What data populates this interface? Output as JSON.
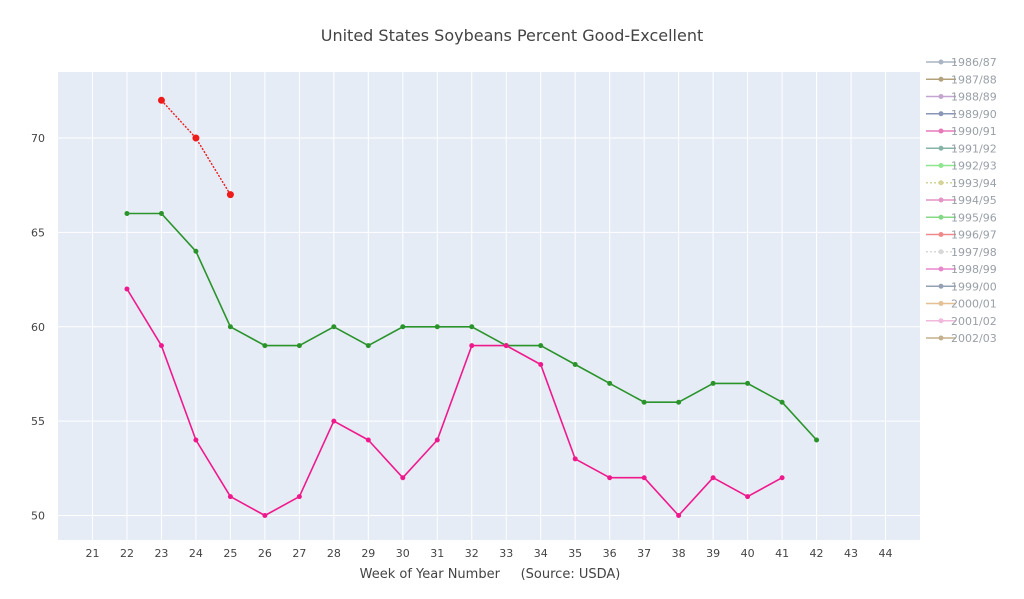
{
  "chart_data": {
    "type": "line",
    "title": "United States Soybeans Percent Good-Excellent",
    "xlabel": "Week of Year Number     (Source: USDA)",
    "ylabel": "",
    "xlim": [
      20,
      45
    ],
    "ylim": [
      48.7,
      73.5
    ],
    "x_ticks": [
      "21",
      "22",
      "23",
      "24",
      "25",
      "26",
      "27",
      "28",
      "29",
      "30",
      "31",
      "32",
      "33",
      "34",
      "35",
      "36",
      "37",
      "38",
      "39",
      "40",
      "41",
      "42",
      "43",
      "44"
    ],
    "y_ticks": [
      "50",
      "55",
      "60",
      "65",
      "70"
    ],
    "grid": true,
    "legend_position": "right",
    "legend": [
      {
        "label": "1986/87",
        "color": "#a9b4c4",
        "dash": false
      },
      {
        "label": "1987/88",
        "color": "#b3a17c",
        "dash": false
      },
      {
        "label": "1988/89",
        "color": "#c4a5d0",
        "dash": false
      },
      {
        "label": "1989/90",
        "color": "#8a96b8",
        "dash": false
      },
      {
        "label": "1990/91",
        "color": "#e879b8",
        "dash": false
      },
      {
        "label": "1991/92",
        "color": "#88b4a8",
        "dash": false
      },
      {
        "label": "1992/93",
        "color": "#8ee68e",
        "dash": false
      },
      {
        "label": "1993/94",
        "color": "#d4d49a",
        "dash": true
      },
      {
        "label": "1994/95",
        "color": "#e494c4",
        "dash": false
      },
      {
        "label": "1995/96",
        "color": "#86d886",
        "dash": false
      },
      {
        "label": "1996/97",
        "color": "#f08a8a",
        "dash": false
      },
      {
        "label": "1997/98",
        "color": "#d8d8d8",
        "dash": true
      },
      {
        "label": "1998/99",
        "color": "#e888cc",
        "dash": false
      },
      {
        "label": "1999/00",
        "color": "#94a0b4",
        "dash": false
      },
      {
        "label": "2000/01",
        "color": "#e4c094",
        "dash": false
      },
      {
        "label": "2001/02",
        "color": "#f0b8dc",
        "dash": false
      },
      {
        "label": "2002/03",
        "color": "#c4b08c",
        "dash": false
      }
    ],
    "series": [
      {
        "color": "#ef1a1a",
        "dash": true,
        "marker_size": 3.5,
        "x": [
          23,
          24,
          25
        ],
        "y": [
          72,
          70,
          67
        ]
      },
      {
        "color": "#2a932a",
        "dash": false,
        "marker_size": 2.5,
        "x": [
          22,
          23,
          24,
          25,
          26,
          27,
          28,
          29,
          30,
          31,
          32,
          33,
          34,
          35,
          36,
          37,
          38,
          39,
          40,
          41,
          42
        ],
        "y": [
          66,
          66,
          64,
          60,
          59,
          59,
          60,
          59,
          60,
          60,
          60,
          59,
          59,
          58,
          57,
          56,
          56,
          57,
          57,
          56,
          54
        ]
      },
      {
        "color": "#f0198c",
        "dash": false,
        "marker_size": 2.5,
        "x": [
          22,
          23,
          24,
          25,
          26,
          27,
          28,
          29,
          30,
          31,
          32,
          33,
          34,
          35,
          36,
          37,
          38,
          39,
          40,
          41
        ],
        "y": [
          62,
          59,
          54,
          51,
          50,
          51,
          55,
          54,
          52,
          54,
          59,
          59,
          58,
          53,
          52,
          52,
          50,
          52,
          51,
          52
        ]
      }
    ]
  }
}
